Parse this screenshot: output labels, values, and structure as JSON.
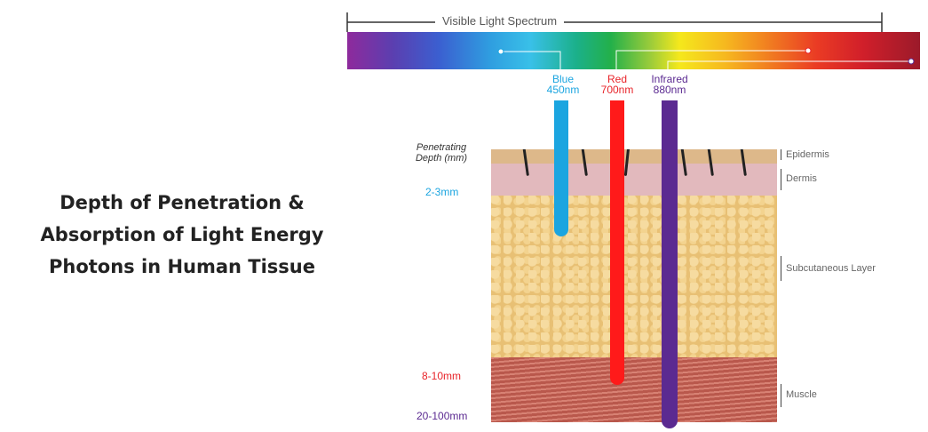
{
  "title": {
    "line1": "Depth of Penetration &",
    "line2": "Absorption of Light Energy",
    "line3": "Photons in Human Tissue"
  },
  "spectrum": {
    "label": "Visible Light Spectrum"
  },
  "bands": [
    {
      "name": "Blue",
      "wavelength": "450nm",
      "color": "#1ba5e0"
    },
    {
      "name": "Red",
      "wavelength": "700nm",
      "color": "#e8242a"
    },
    {
      "name": "Infrared",
      "wavelength": "880nm",
      "color": "#5b2a91"
    }
  ],
  "depth": {
    "heading_line1": "Penetrating",
    "heading_line2": "Depth (mm)",
    "blue": "2-3mm",
    "red": "8-10mm",
    "infrared": "20-100mm"
  },
  "layers": {
    "epidermis": "Epidermis",
    "dermis": "Dermis",
    "subcutaneous": "Subcutaneous Layer",
    "muscle": "Muscle"
  }
}
